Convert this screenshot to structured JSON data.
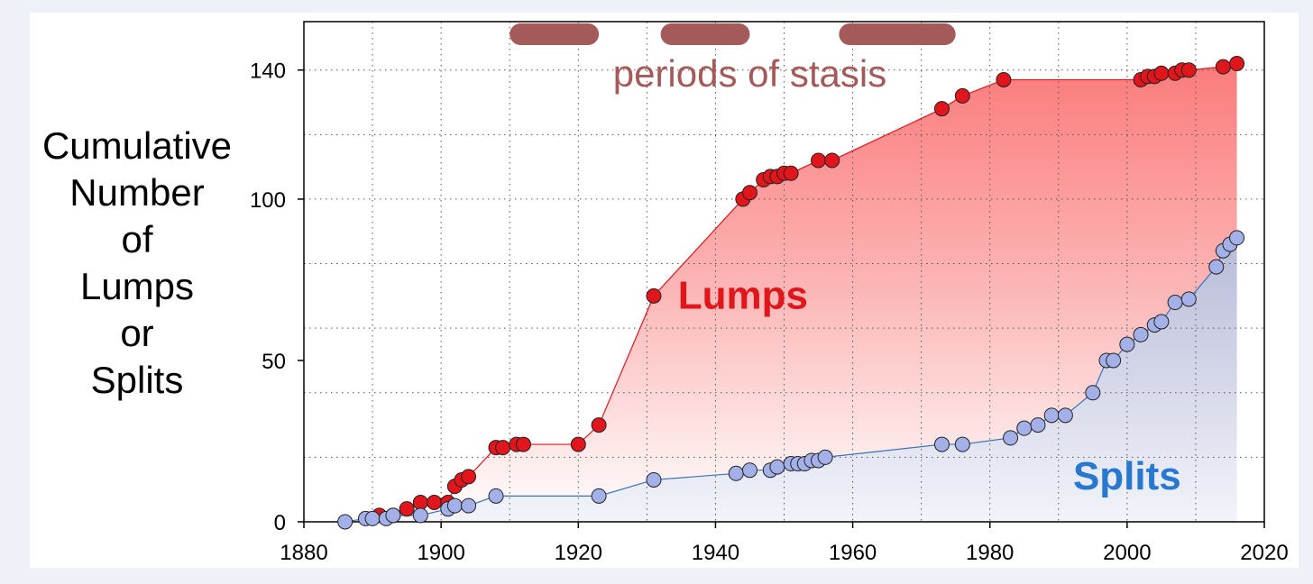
{
  "chart_data": {
    "type": "scatter",
    "xlabel": "",
    "ylabel_lines": [
      "Cumulative",
      "Number",
      "of",
      "Lumps",
      "or",
      "Splits"
    ],
    "xlim": [
      1880,
      2020
    ],
    "ylim": [
      0,
      155
    ],
    "x_ticks": [
      1880,
      1900,
      1920,
      1940,
      1960,
      1980,
      2000,
      2020
    ],
    "y_ticks": [
      0,
      50,
      100,
      140
    ],
    "grid": true,
    "stasis": {
      "label": "periods of stasis",
      "periods": [
        [
          1910,
          1923
        ],
        [
          1932,
          1945
        ],
        [
          1958,
          1975
        ]
      ],
      "color": "#a55a5a"
    },
    "series": [
      {
        "name": "Lumps",
        "color": "#e0161c",
        "label_at": [
          1944,
          70
        ],
        "x": [
          1891,
          1893,
          1895,
          1897,
          1899,
          1901,
          1902,
          1903,
          1904,
          1908,
          1909,
          1911,
          1912,
          1920,
          1923,
          1931,
          1944,
          1945,
          1947,
          1948,
          1949,
          1950,
          1951,
          1955,
          1957,
          1973,
          1976,
          1982,
          2002,
          2003,
          2004,
          2005,
          2007,
          2008,
          2009,
          2014,
          2016
        ],
        "y": [
          2,
          2,
          4,
          6,
          6,
          6,
          11,
          13,
          14,
          23,
          23,
          24,
          24,
          24,
          30,
          70,
          100,
          102,
          106,
          107,
          107,
          108,
          108,
          112,
          112,
          128,
          132,
          137,
          137,
          138,
          138,
          139,
          139,
          140,
          140,
          141,
          142
        ]
      },
      {
        "name": "Splits",
        "color": "#2878d0",
        "label_at": [
          2000,
          14
        ],
        "x": [
          1886,
          1889,
          1890,
          1892,
          1893,
          1897,
          1901,
          1902,
          1904,
          1908,
          1923,
          1931,
          1943,
          1945,
          1948,
          1949,
          1951,
          1952,
          1953,
          1954,
          1955,
          1956,
          1973,
          1976,
          1983,
          1985,
          1987,
          1989,
          1991,
          1995,
          1997,
          1998,
          2000,
          2002,
          2004,
          2005,
          2007,
          2009,
          2013,
          2014,
          2015,
          2016
        ],
        "y": [
          0,
          1,
          1,
          1,
          2,
          2,
          4,
          5,
          5,
          8,
          8,
          13,
          15,
          16,
          16,
          17,
          18,
          18,
          18,
          19,
          19,
          20,
          24,
          24,
          26,
          29,
          30,
          33,
          33,
          40,
          50,
          50,
          55,
          58,
          61,
          62,
          68,
          69,
          79,
          84,
          86,
          88
        ]
      }
    ]
  }
}
